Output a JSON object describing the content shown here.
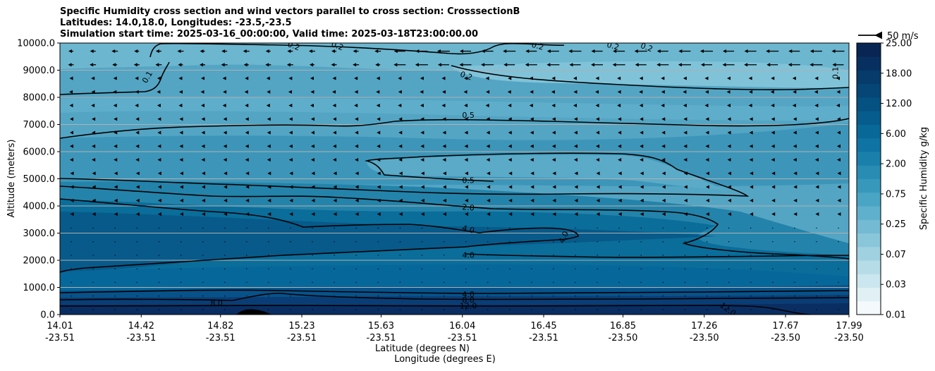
{
  "chart_data": {
    "type": "contour",
    "title": [
      "Specific Humidity cross section and wind vectors parallel to cross section: CrosssectionB",
      "Latitudes: 14.0,18.0, Longitudes: -23.5,-23.5",
      "Simulation start time: 2025-03-16_00:00:00, Valid time: 2025-03-18T23:00:00.00"
    ],
    "ylabel": "Altitude (meters)",
    "xlabel_lat": "Latitude (degrees N)",
    "xlabel_lon": "Longitude (degrees E)",
    "ylim": [
      0,
      10000
    ],
    "yticks": [
      "0.0",
      "1000.0",
      "2000.0",
      "3000.0",
      "4000.0",
      "5000.0",
      "6000.0",
      "7000.0",
      "8000.0",
      "9000.0",
      "10000.0"
    ],
    "xticks": [
      {
        "lat": "14.01",
        "lon": "-23.51"
      },
      {
        "lat": "14.42",
        "lon": "-23.51"
      },
      {
        "lat": "14.82",
        "lon": "-23.51"
      },
      {
        "lat": "15.23",
        "lon": "-23.51"
      },
      {
        "lat": "15.63",
        "lon": "-23.51"
      },
      {
        "lat": "16.04",
        "lon": "-23.51"
      },
      {
        "lat": "16.45",
        "lon": "-23.51"
      },
      {
        "lat": "16.85",
        "lon": "-23.50"
      },
      {
        "lat": "17.26",
        "lon": "-23.50"
      },
      {
        "lat": "17.67",
        "lon": "-23.50"
      },
      {
        "lat": "17.99",
        "lon": "-23.50"
      }
    ],
    "colorbar": {
      "label": "Specific Humidity g/kg",
      "ticks": [
        "0.01",
        "0.03",
        "0.07",
        "0.25",
        "0.75",
        "2.00",
        "6.00",
        "12.00",
        "18.00",
        "25.00"
      ]
    },
    "quiver_key": "50 m/s",
    "contour_labels": [
      {
        "text": "0.1",
        "lat": 14.45,
        "alt": 8750,
        "rot": -60
      },
      {
        "text": "0.2",
        "lat": 15.19,
        "alt": 9900,
        "rot": 20
      },
      {
        "text": "0.2",
        "lat": 15.41,
        "alt": 9900,
        "rot": 20
      },
      {
        "text": "0.2",
        "lat": 16.06,
        "alt": 8800,
        "rot": 20
      },
      {
        "text": "0.2",
        "lat": 16.42,
        "alt": 9900,
        "rot": 15
      },
      {
        "text": "0.2",
        "lat": 16.8,
        "alt": 9900,
        "rot": 15
      },
      {
        "text": "0.2",
        "lat": 16.97,
        "alt": 9850,
        "rot": 20
      },
      {
        "text": "0.1",
        "lat": 17.92,
        "alt": 8900,
        "rot": -90
      },
      {
        "text": "0.5",
        "lat": 16.07,
        "alt": 7350,
        "rot": 0
      },
      {
        "text": "0.5",
        "lat": 16.07,
        "alt": 4950,
        "rot": 0
      },
      {
        "text": "2.0",
        "lat": 16.07,
        "alt": 3950,
        "rot": 5
      },
      {
        "text": "4.0",
        "lat": 16.07,
        "alt": 3150,
        "rot": 15
      },
      {
        "text": "4.0",
        "lat": 16.55,
        "alt": 2850,
        "rot": -65
      },
      {
        "text": "4.0",
        "lat": 16.07,
        "alt": 2200,
        "rot": 0
      },
      {
        "text": "4.0",
        "lat": 16.07,
        "alt": 750,
        "rot": 0
      },
      {
        "text": "8.0",
        "lat": 16.07,
        "alt": 550,
        "rot": 0
      },
      {
        "text": "8.0",
        "lat": 14.8,
        "alt": 430,
        "rot": 0
      },
      {
        "text": "12.0",
        "lat": 16.07,
        "alt": 320,
        "rot": 0
      },
      {
        "text": "12.0",
        "lat": 17.38,
        "alt": 200,
        "rot": 35
      }
    ]
  }
}
